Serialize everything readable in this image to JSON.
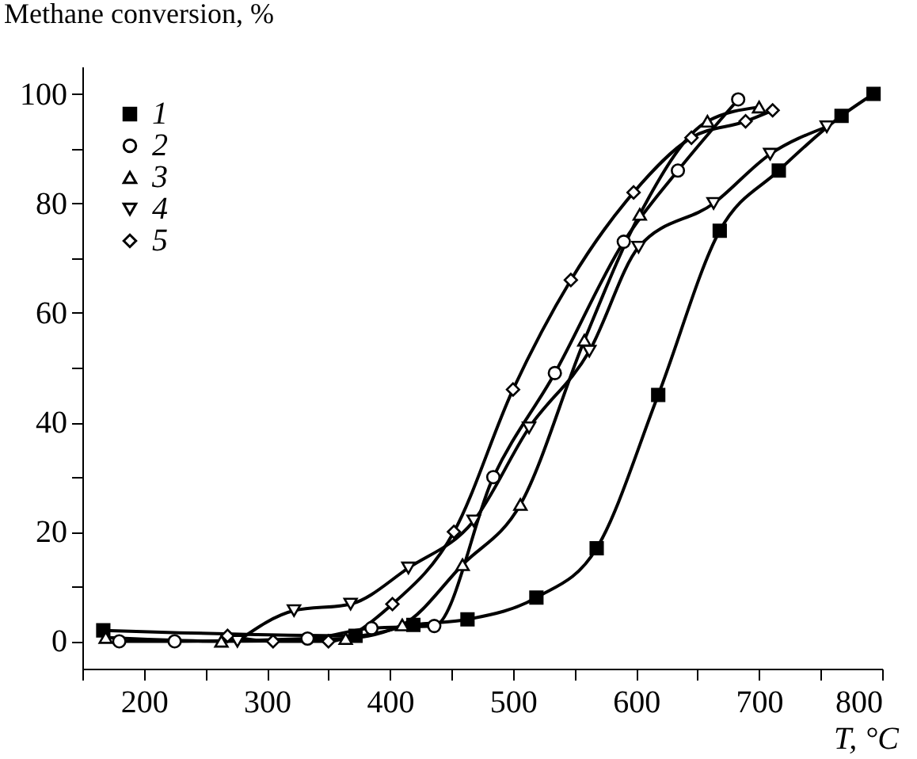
{
  "chart_data": {
    "type": "line",
    "xlabel": "T, °C",
    "ylabel": "Methane conversion, %",
    "xlim": [
      150,
      800
    ],
    "ylim": [
      -5,
      105
    ],
    "xticks": [
      {
        "value": 150,
        "label": null
      },
      200,
      {
        "value": 250,
        "label": null
      },
      300,
      {
        "value": 350,
        "label": null
      },
      400,
      {
        "value": 450,
        "label": null
      },
      500,
      {
        "value": 550,
        "label": null
      },
      600,
      {
        "value": 650,
        "label": null
      },
      700,
      {
        "value": 750,
        "label": null
      },
      800
    ],
    "yticks": [
      0,
      {
        "value": 10,
        "label": null
      },
      20,
      {
        "value": 30,
        "label": null
      },
      40,
      {
        "value": 50,
        "label": null
      },
      60,
      {
        "value": 70,
        "label": null
      },
      80,
      {
        "value": 90,
        "label": null
      },
      100
    ],
    "grid": false,
    "legend": "top left",
    "line_style": "solid",
    "series": [
      {
        "name": "1",
        "color": "#000000",
        "marker": "square",
        "x": [
          167,
          372,
          419,
          463,
          519,
          568,
          618,
          668,
          716,
          767,
          793
        ],
        "values": [
          2,
          1,
          3,
          4,
          8,
          17,
          45,
          75,
          86,
          96,
          100
        ]
      },
      {
        "name": "2",
        "color": "#000000",
        "marker": "circle",
        "x": [
          180,
          225,
          333,
          385,
          436,
          484,
          534,
          590,
          634,
          683
        ],
        "values": [
          0,
          0,
          0.5,
          2.4,
          2.8,
          30,
          49,
          73,
          86,
          99
        ]
      },
      {
        "name": "3",
        "color": "#000000",
        "marker": "triangle-up",
        "x": [
          169,
          263,
          364,
          410,
          459,
          506,
          558,
          603,
          658,
          700
        ],
        "values": [
          0.7,
          0,
          0.5,
          3,
          14,
          25,
          55,
          78,
          95,
          97.6
        ]
      },
      {
        "name": "4",
        "color": "#000000",
        "marker": "triangle-down",
        "x": [
          276,
          322,
          368,
          415,
          468,
          513,
          562,
          602,
          663,
          709,
          755
        ],
        "values": [
          0,
          5.6,
          6.8,
          13.4,
          22,
          39,
          53,
          72,
          80,
          89,
          94
        ]
      },
      {
        "name": "5",
        "color": "#000000",
        "marker": "diamond",
        "x": [
          268,
          305,
          350,
          402,
          452,
          500,
          547,
          598,
          645,
          689,
          711
        ],
        "values": [
          1,
          0,
          0,
          6.8,
          20,
          46,
          66,
          82,
          92,
          95,
          97
        ]
      }
    ]
  }
}
